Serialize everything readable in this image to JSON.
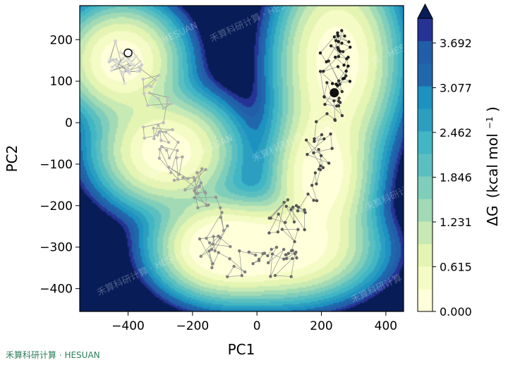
{
  "chart_data": {
    "type": "heatmap",
    "xlabel": "PC1",
    "ylabel": "PC2",
    "xlim": [
      -550,
      455
    ],
    "ylim": [
      -455,
      282
    ],
    "x_ticks": [
      "−400",
      "−200",
      "0",
      "200",
      "400"
    ],
    "x_tick_values": [
      -400,
      -200,
      0,
      200,
      400
    ],
    "y_ticks": [
      "200",
      "100",
      "0",
      "−100",
      "−200",
      "−300",
      "−400"
    ],
    "y_tick_values": [
      200,
      100,
      0,
      -100,
      -200,
      -300,
      -400
    ],
    "colorbar": {
      "label_prefix": "ΔG",
      "label_units": "(kcal mol",
      "label_exponent": "−1",
      "label_suffix": ")",
      "tick_labels": [
        "3.692",
        "3.077",
        "2.462",
        "1.846",
        "1.231",
        "0.615",
        "0.000"
      ],
      "tick_values": [
        3.692,
        3.077,
        2.462,
        1.846,
        1.231,
        0.615,
        0.0
      ],
      "range": [
        0.0,
        3.9
      ],
      "extend": "max",
      "colormap": "YlGnBu"
    },
    "basins": [
      {
        "x": -420,
        "y": 150,
        "sx": 95,
        "sy": 70
      },
      {
        "x": -280,
        "y": -70,
        "sx": 110,
        "sy": 70
      },
      {
        "x": 250,
        "y": 150,
        "sx": 95,
        "sy": 120
      },
      {
        "x": 80,
        "y": -310,
        "sx": 140,
        "sy": 60
      },
      {
        "x": -120,
        "y": -300,
        "sx": 100,
        "sy": 60
      },
      {
        "x": 200,
        "y": -130,
        "sx": 80,
        "sy": 90
      }
    ],
    "start_marker": {
      "x": -400,
      "y": 168,
      "style": "open circle"
    },
    "end_marker": {
      "x": 240,
      "y": 72,
      "style": "filled black circle"
    },
    "trajectory_waypoints": [
      {
        "x": -400,
        "y": 168
      },
      {
        "x": -430,
        "y": 120
      },
      {
        "x": -390,
        "y": 140
      },
      {
        "x": -460,
        "y": 170
      },
      {
        "x": -350,
        "y": 110
      },
      {
        "x": -300,
        "y": 60
      },
      {
        "x": -320,
        "y": -20
      },
      {
        "x": -250,
        "y": -60
      },
      {
        "x": -280,
        "y": -110
      },
      {
        "x": -200,
        "y": -150
      },
      {
        "x": -190,
        "y": -140
      },
      {
        "x": -160,
        "y": -200
      },
      {
        "x": -100,
        "y": -280
      },
      {
        "x": -150,
        "y": -310
      },
      {
        "x": -40,
        "y": -340
      },
      {
        "x": 20,
        "y": -330
      },
      {
        "x": 80,
        "y": -350
      },
      {
        "x": 100,
        "y": -290
      },
      {
        "x": 60,
        "y": -200
      },
      {
        "x": 140,
        "y": -230
      },
      {
        "x": 160,
        "y": -120
      },
      {
        "x": 190,
        "y": -60
      },
      {
        "x": 220,
        "y": 0
      },
      {
        "x": 250,
        "y": 60
      },
      {
        "x": 230,
        "y": 120
      },
      {
        "x": 260,
        "y": 180
      },
      {
        "x": 220,
        "y": 200
      },
      {
        "x": 280,
        "y": 140
      },
      {
        "x": 240,
        "y": 72
      }
    ],
    "colors": {
      "frame": "#000000",
      "trajectory_line": "#8f968f",
      "point_start": "#e6e6e6",
      "point_end": "#111111"
    }
  },
  "watermark": {
    "text": "禾算科研计算 · HESUAN",
    "corner_text": "禾算科研计算 · HESUAN"
  }
}
